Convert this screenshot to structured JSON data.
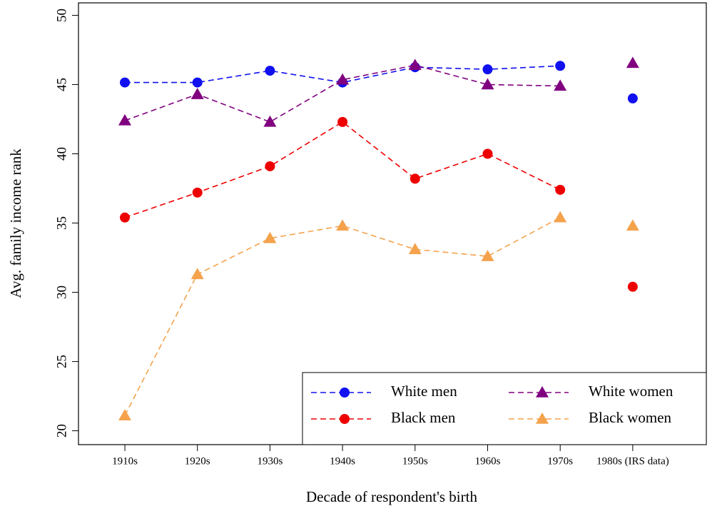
{
  "chart_data": {
    "type": "line",
    "xlabel": "Decade of respondent's birth",
    "ylabel": "Avg. family income rank",
    "categories": [
      "1910s",
      "1920s",
      "1930s",
      "1940s",
      "1950s",
      "1960s",
      "1970s",
      "1980s (IRS data)"
    ],
    "disconnected_last": true,
    "series": [
      {
        "name": "White men",
        "color": "#1010f0",
        "marker": "circle",
        "values": [
          45.15,
          45.15,
          46.0,
          45.15,
          46.25,
          46.1,
          46.35,
          44.0
        ]
      },
      {
        "name": "White women",
        "color": "#800080",
        "marker": "triangle",
        "values": [
          42.4,
          44.3,
          42.3,
          45.35,
          46.4,
          45.0,
          44.9,
          46.55
        ]
      },
      {
        "name": "Black men",
        "color": "#ee0000",
        "marker": "circle",
        "values": [
          35.4,
          37.2,
          39.1,
          42.3,
          38.2,
          40.0,
          37.4,
          30.4
        ]
      },
      {
        "name": "Black women",
        "color": "#f4a24c",
        "marker": "triangle",
        "values": [
          21.1,
          31.3,
          33.9,
          34.8,
          33.1,
          32.6,
          35.4,
          34.8
        ]
      }
    ],
    "ylim": [
      19.0,
      50.9
    ],
    "yticks": [
      20,
      25,
      30,
      35,
      40,
      45,
      50
    ],
    "legend": "lower right"
  }
}
